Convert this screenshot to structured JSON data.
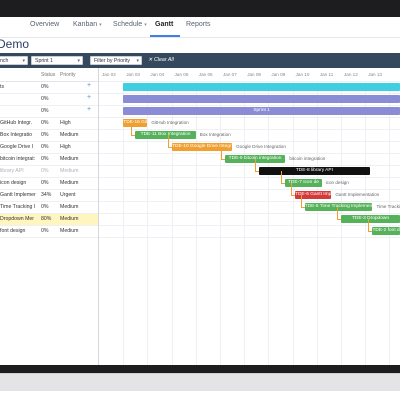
{
  "nav": {
    "tabs": [
      "Overview",
      "Kanban",
      "Schedule",
      "Gantt",
      "Reports"
    ],
    "active": "Gantt"
  },
  "page": {
    "title": "Demo"
  },
  "filters": {
    "branch": "nch",
    "sprint": "Sprint 1",
    "priority": "Filter by Priority",
    "clear_all": "Clear All"
  },
  "grid": {
    "headers": {
      "status": "Status",
      "priority": "Priority"
    },
    "rows": [
      {
        "name": "ts",
        "status": "0%",
        "priority": ""
      },
      {
        "name": "",
        "status": "0%",
        "priority": ""
      },
      {
        "name": "",
        "status": "0%",
        "priority": ""
      },
      {
        "name": "GitHub Integr.",
        "status": "0%",
        "priority": "High"
      },
      {
        "name": "Box Integratio",
        "status": "0%",
        "priority": "Medium"
      },
      {
        "name": "Google Drive I",
        "status": "0%",
        "priority": "High"
      },
      {
        "name": "bitcoin integrat:",
        "status": "0%",
        "priority": "Medium"
      },
      {
        "name": "library API",
        "status": "0%",
        "priority": "Medium"
      },
      {
        "name": "icon design",
        "status": "0%",
        "priority": "Medium"
      },
      {
        "name": "Gantt Implemer",
        "status": "34%",
        "priority": "Urgent"
      },
      {
        "name": "Time Tracking I",
        "status": "0%",
        "priority": "Medium"
      },
      {
        "name": "Dropdown Mer",
        "status": "80%",
        "priority": "Medium"
      },
      {
        "name": "font design",
        "status": "0%",
        "priority": "Medium"
      }
    ]
  },
  "timeline": {
    "dates": [
      "Jan 02",
      "Jan 03",
      "Jan 04",
      "Jan 05",
      "Jan 06",
      "Jan 07",
      "Jan 08",
      "Jan 09",
      "Jan 10",
      "Jan 11",
      "Jan 12",
      "Jan 13"
    ],
    "day_labels_prefix": "Jan",
    "bars": [
      {
        "row": 0,
        "start": 1.0,
        "duration": 13.0,
        "label": "",
        "side_label": "",
        "color": "#3ecfe3"
      },
      {
        "row": 1,
        "start": 1.0,
        "duration": 13.0,
        "label": "",
        "side_label": "",
        "color": "#8a8dd6"
      },
      {
        "row": 2,
        "start": 1.0,
        "duration": 13.0,
        "label": "Sprint 1",
        "side_label": "",
        "color": "#8a8dd6"
      },
      {
        "row": 3,
        "start": 1.0,
        "duration": 1.0,
        "label": "TDE-16 Git",
        "side_label": "GitHub Integration",
        "color": "#f0a030"
      },
      {
        "row": 4,
        "start": 1.5,
        "duration": 2.5,
        "label": "TDE-11 Box Integration",
        "side_label": "Box Integration",
        "color": "#56b25a"
      },
      {
        "row": 5,
        "start": 3.0,
        "duration": 2.5,
        "label": "TDE-10 Google Drive Integr",
        "side_label": "Google Drive Integration",
        "color": "#f0a030"
      },
      {
        "row": 6,
        "start": 5.2,
        "duration": 2.5,
        "label": "TDE-9 bitcoin integration",
        "side_label": "bitcoin integration",
        "color": "#56b25a"
      },
      {
        "row": 7,
        "start": 6.6,
        "duration": 4.6,
        "label": "TDE-8 library API",
        "side_label": "",
        "color": "#111111"
      },
      {
        "row": 8,
        "start": 7.7,
        "duration": 1.5,
        "label": "TDE-7 Icon de",
        "side_label": "icon design",
        "color": "#56b25a"
      },
      {
        "row": 9,
        "start": 8.1,
        "duration": 1.5,
        "label": "TDE-6 Gantt Implemen",
        "side_label": "Gantt Implementation",
        "color": "#d33b3b"
      },
      {
        "row": 10,
        "start": 8.5,
        "duration": 2.8,
        "label": "TDE-5 Time Tracking Implementati",
        "side_label": "Time Tracking Implementation",
        "color": "#56b25a"
      },
      {
        "row": 11,
        "start": 10.0,
        "duration": 3.0,
        "label": "TDE-3 Dropdown",
        "side_label": "",
        "color": "#56b25a"
      },
      {
        "row": 12,
        "start": 11.3,
        "duration": 2.5,
        "label": "TDE-2 font de",
        "side_label": "",
        "color": "#56b25a"
      }
    ]
  }
}
